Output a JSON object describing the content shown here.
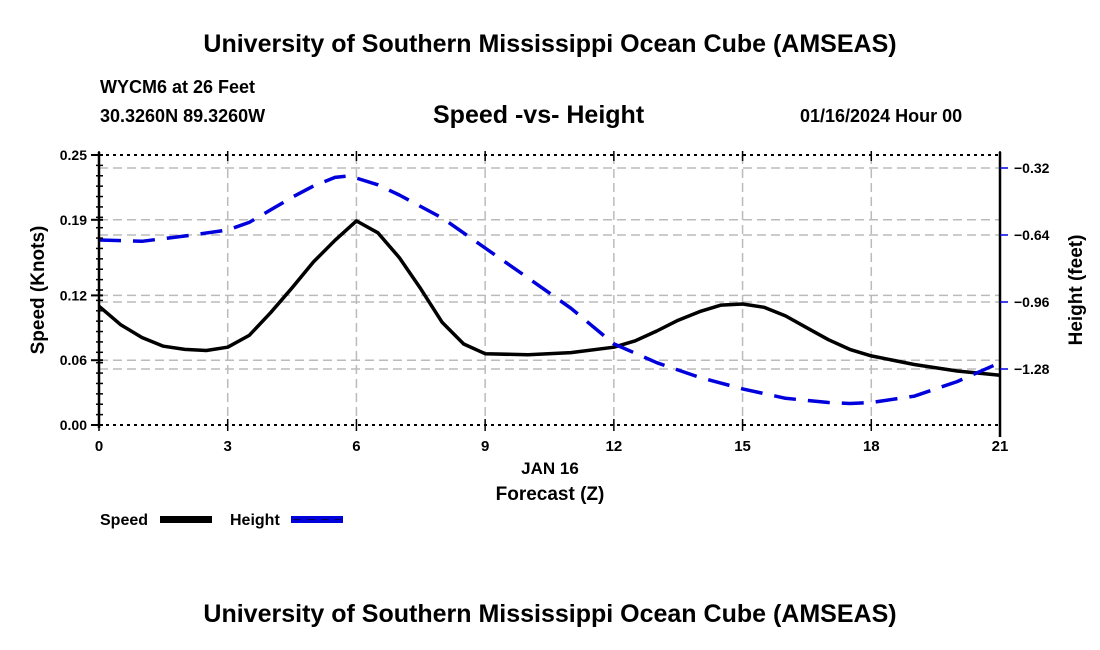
{
  "header": {
    "title": "University of Southern Mississippi Ocean Cube (AMSEAS)",
    "station": "WYCM6 at 26 Feet",
    "coords": "30.3260N  89.3260W",
    "datetime": "01/16/2024 Hour 00"
  },
  "footer": {
    "title": "University of Southern Mississippi Ocean Cube (AMSEAS)"
  },
  "chart_data": {
    "type": "line",
    "title": "Speed -vs- Height",
    "xlabel": "Forecast (Z)",
    "xdate_label": "JAN 16",
    "ylabel": "Speed (Knots)",
    "y2label": "Height (feet)",
    "xlim": [
      0,
      21
    ],
    "ylim": [
      0,
      0.25
    ],
    "y2lim": [
      -1.6,
      -0.26
    ],
    "xticks": [
      0,
      3,
      6,
      9,
      12,
      15,
      18,
      21
    ],
    "xtick_labels": [
      "0",
      "3",
      "6",
      "9",
      "12",
      "15",
      "18",
      "21"
    ],
    "yticks": [
      0.0,
      0.06,
      0.12,
      0.19,
      0.25
    ],
    "ytick_labels": [
      "0.00",
      "0.06",
      "0.12",
      "0.19",
      "0.25"
    ],
    "y2ticks": [
      -0.32,
      -0.64,
      -0.96,
      -1.28
    ],
    "y2tick_labels": [
      "-0.32",
      "-0.64",
      "-0.96",
      "-1.28"
    ],
    "grid": true,
    "legend_placement": "bottom-left",
    "series": [
      {
        "name": "Speed",
        "axis": "left",
        "color": "#000000",
        "style": "solid",
        "x": [
          0,
          0.5,
          1,
          1.5,
          2,
          2.5,
          3,
          3.5,
          4,
          4.5,
          5,
          5.5,
          6,
          6.5,
          7,
          7.5,
          8,
          8.5,
          9,
          10,
          11,
          12,
          12.5,
          13,
          13.5,
          14,
          14.5,
          15,
          15.5,
          16,
          16.5,
          17,
          17.5,
          18,
          19,
          20,
          21
        ],
        "values": [
          0.11,
          0.093,
          0.081,
          0.073,
          0.07,
          0.069,
          0.072,
          0.083,
          0.104,
          0.127,
          0.151,
          0.171,
          0.189,
          0.178,
          0.155,
          0.126,
          0.095,
          0.075,
          0.066,
          0.065,
          0.067,
          0.072,
          0.078,
          0.087,
          0.097,
          0.105,
          0.111,
          0.112,
          0.109,
          0.101,
          0.09,
          0.079,
          0.07,
          0.064,
          0.056,
          0.05,
          0.046
        ]
      },
      {
        "name": "Height",
        "axis": "right",
        "color": "#0000dd",
        "style": "dashed",
        "x": [
          0,
          1,
          2,
          3,
          3.5,
          4,
          4.5,
          5,
          5.5,
          5.8,
          6,
          6.5,
          7,
          8,
          9,
          10,
          11,
          12,
          13,
          14,
          15,
          16,
          17,
          17.5,
          18,
          19,
          20,
          21
        ],
        "values": [
          -0.664,
          -0.67,
          -0.645,
          -0.616,
          -0.58,
          -0.52,
          -0.46,
          -0.406,
          -0.365,
          -0.358,
          -0.368,
          -0.4,
          -0.449,
          -0.559,
          -0.702,
          -0.845,
          -0.99,
          -1.16,
          -1.25,
          -1.32,
          -1.375,
          -1.42,
          -1.44,
          -1.445,
          -1.44,
          -1.41,
          -1.34,
          -1.25
        ]
      }
    ]
  }
}
